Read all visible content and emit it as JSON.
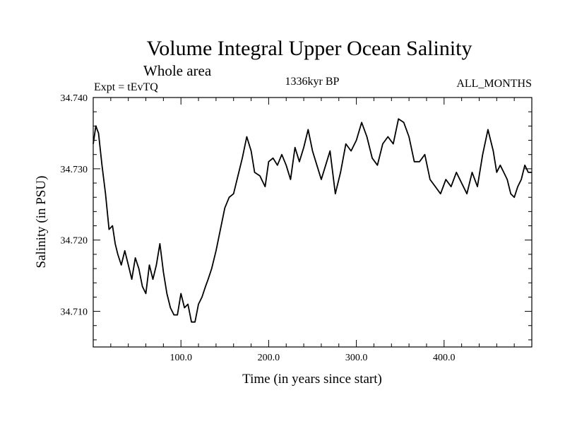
{
  "chart_data": {
    "type": "line",
    "title": "Volume Integral Upper Ocean Salinity",
    "subtitle": "Whole area",
    "experiment": "Expt = tEvTQ",
    "period": "1336kyr BP",
    "months": "ALL_MONTHS",
    "xlabel": "Time (in years since start)",
    "ylabel": "Salinity (in PSU)",
    "xlim": [
      0,
      500
    ],
    "ylim": [
      34.705,
      34.74
    ],
    "x_ticks": [
      100,
      200,
      300,
      400
    ],
    "x_tick_labels": [
      "100.0",
      "200.0",
      "300.0",
      "400.0"
    ],
    "y_ticks": [
      34.71,
      34.72,
      34.73,
      34.74
    ],
    "y_tick_labels": [
      "34.710",
      "34.720",
      "34.730",
      "34.740"
    ],
    "grid": false,
    "series": [
      {
        "name": "salinity",
        "x": [
          0,
          3,
          6,
          10,
          14,
          18,
          22,
          25,
          28,
          32,
          36,
          40,
          44,
          48,
          52,
          56,
          60,
          64,
          68,
          72,
          76,
          80,
          84,
          88,
          92,
          96,
          100,
          104,
          108,
          112,
          116,
          120,
          124,
          128,
          131,
          135,
          140,
          145,
          150,
          155,
          160,
          165,
          170,
          175,
          180,
          184,
          190,
          196,
          200,
          205,
          210,
          215,
          220,
          225,
          230,
          235,
          240,
          245,
          250,
          255,
          260,
          265,
          270,
          276,
          282,
          288,
          294,
          300,
          306,
          312,
          318,
          324,
          330,
          336,
          342,
          348,
          354,
          360,
          366,
          372,
          378,
          384,
          390,
          396,
          402,
          408,
          414,
          420,
          426,
          432,
          438,
          444,
          450,
          456,
          460,
          464,
          468,
          472,
          476,
          480,
          484,
          488,
          492,
          496,
          500
        ],
        "values": [
          34.7335,
          34.736,
          34.735,
          34.7305,
          34.7265,
          34.7215,
          34.722,
          34.7195,
          34.718,
          34.7165,
          34.7185,
          34.7165,
          34.7145,
          34.7175,
          34.716,
          34.7135,
          34.7125,
          34.7165,
          34.7145,
          34.7165,
          34.7195,
          34.7155,
          34.7125,
          34.7105,
          34.7095,
          34.7095,
          34.7125,
          34.7105,
          34.711,
          34.7085,
          34.7085,
          34.711,
          34.712,
          34.7135,
          34.7145,
          34.716,
          34.7185,
          34.7215,
          34.7245,
          34.726,
          34.7265,
          34.729,
          34.7315,
          34.7345,
          34.7325,
          34.7295,
          34.729,
          34.7275,
          34.731,
          34.7315,
          34.7305,
          34.732,
          34.7305,
          34.7285,
          34.733,
          34.731,
          34.733,
          34.7355,
          34.7325,
          34.7305,
          34.7285,
          34.7305,
          34.7325,
          34.7265,
          34.7295,
          34.7335,
          34.7325,
          34.734,
          34.7365,
          34.7345,
          34.7315,
          34.7305,
          34.7335,
          34.7345,
          34.7335,
          34.737,
          34.7365,
          34.7345,
          34.731,
          34.731,
          34.732,
          34.7285,
          34.7275,
          34.7265,
          34.7285,
          34.7275,
          34.7295,
          34.728,
          34.7265,
          34.7295,
          34.7275,
          34.732,
          34.7355,
          34.7325,
          34.7295,
          34.7305,
          34.7295,
          34.7285,
          34.7265,
          34.726,
          34.7275,
          34.7285,
          34.7305,
          34.7295,
          34.7295
        ]
      }
    ]
  },
  "colors": {
    "line": "#000000",
    "axis": "#000000",
    "background": "#ffffff"
  }
}
